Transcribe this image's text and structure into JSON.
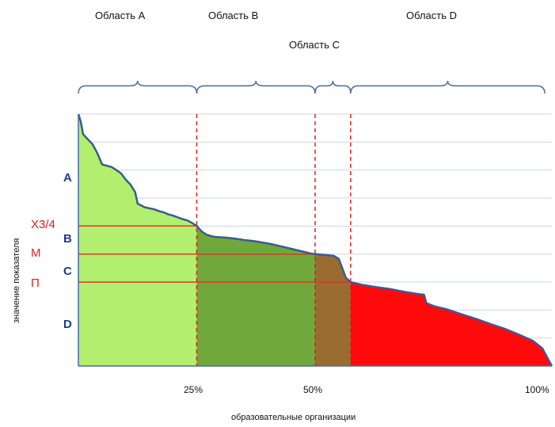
{
  "chart_data": {
    "type": "area",
    "xlabel": "образовательные организации",
    "ylabel": "значение показателя",
    "x_ticks": [
      "25%",
      "50%",
      "100%"
    ],
    "xlim": [
      0,
      100
    ],
    "region_labels": {
      "a": "Область A",
      "b": "Область B",
      "c": "Область C",
      "d": "Область D"
    },
    "level_letters": [
      "A",
      "B",
      "C",
      "D"
    ],
    "stat_labels": {
      "x34": "X3/4",
      "m": "M",
      "p": "П"
    },
    "thresholds_x": [
      25,
      50,
      57.5
    ],
    "thresholds_y_relative": {
      "x34": 0.556,
      "m": 0.444,
      "p": 0.333
    },
    "colors": {
      "region_a": "#b2ef6e",
      "region_b": "#70a83c",
      "region_c": "#9a6c32",
      "region_d": "#ff0a0a",
      "curve": "#3a5a95",
      "grid": "#c9d6e8",
      "axis": "#4a6aa6",
      "brace": "#4a6aa6",
      "divider": "#e0201f",
      "stat_line": "#d93a2a",
      "letter": "#1f3a8c",
      "stat_text": "#e0201f"
    },
    "curve_points": [
      [
        0,
        1.0
      ],
      [
        0.5,
        0.97
      ],
      [
        1,
        0.92
      ],
      [
        2,
        0.9
      ],
      [
        3,
        0.88
      ],
      [
        4,
        0.845
      ],
      [
        5,
        0.8
      ],
      [
        6,
        0.795
      ],
      [
        7,
        0.79
      ],
      [
        8,
        0.778
      ],
      [
        9,
        0.765
      ],
      [
        10,
        0.74
      ],
      [
        11,
        0.72
      ],
      [
        12,
        0.69
      ],
      [
        12.5,
        0.645
      ],
      [
        13,
        0.64
      ],
      [
        14,
        0.63
      ],
      [
        15,
        0.626
      ],
      [
        16,
        0.622
      ],
      [
        17,
        0.615
      ],
      [
        18,
        0.61
      ],
      [
        19,
        0.602
      ],
      [
        20,
        0.597
      ],
      [
        21,
        0.59
      ],
      [
        22,
        0.583
      ],
      [
        23,
        0.578
      ],
      [
        24,
        0.568
      ],
      [
        25,
        0.556
      ],
      [
        26,
        0.535
      ],
      [
        27,
        0.522
      ],
      [
        28,
        0.516
      ],
      [
        29,
        0.512
      ],
      [
        31,
        0.51
      ],
      [
        33,
        0.506
      ],
      [
        35,
        0.5
      ],
      [
        37,
        0.496
      ],
      [
        39,
        0.49
      ],
      [
        41,
        0.483
      ],
      [
        43,
        0.474
      ],
      [
        45,
        0.465
      ],
      [
        47,
        0.456
      ],
      [
        49,
        0.447
      ],
      [
        50,
        0.444
      ],
      [
        52,
        0.441
      ],
      [
        54,
        0.437
      ],
      [
        55,
        0.425
      ],
      [
        55.8,
        0.385
      ],
      [
        56.5,
        0.35
      ],
      [
        57.5,
        0.333
      ],
      [
        60,
        0.322
      ],
      [
        63,
        0.313
      ],
      [
        66,
        0.305
      ],
      [
        69,
        0.294
      ],
      [
        72,
        0.285
      ],
      [
        73,
        0.283
      ],
      [
        73.5,
        0.25
      ],
      [
        75,
        0.238
      ],
      [
        78,
        0.224
      ],
      [
        81,
        0.205
      ],
      [
        84,
        0.187
      ],
      [
        87,
        0.167
      ],
      [
        90,
        0.148
      ],
      [
        93,
        0.125
      ],
      [
        96,
        0.1
      ],
      [
        98,
        0.07
      ],
      [
        100,
        0.0
      ]
    ]
  }
}
